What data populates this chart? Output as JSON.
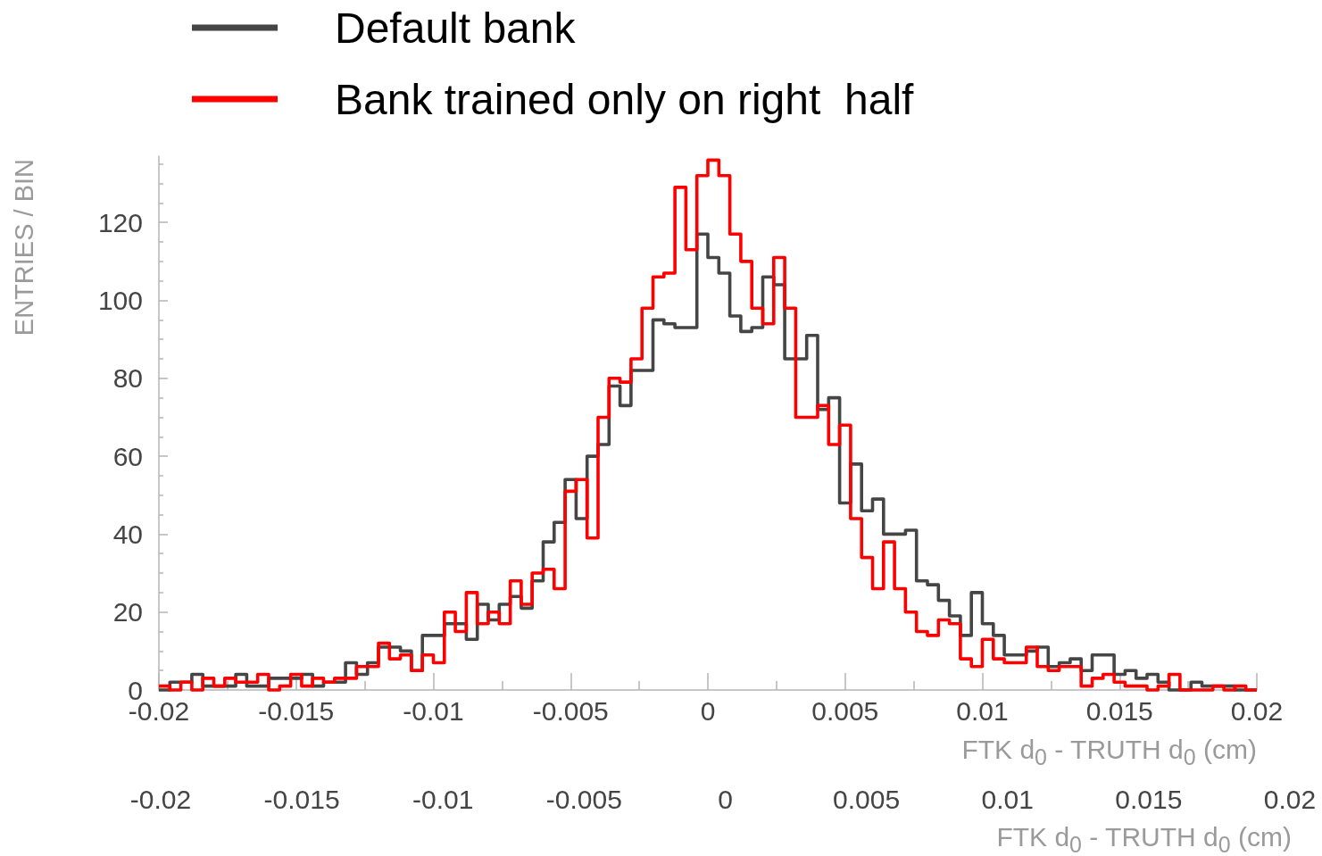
{
  "chart_data": {
    "type": "histogram",
    "xlabel": "FTK d$_{0}$ - TRUTH d$_{0}$ (cm)",
    "x2label": "FTK d$_{0}$ - TRUTH d$_{0}$ (cm)",
    "ylabel": "ENTRIES / BIN",
    "legend": "top left",
    "bins": [
      -0.02,
      -0.0196,
      -0.0192,
      -0.0188,
      -0.0184,
      -0.018,
      -0.0176,
      -0.0172,
      -0.0168,
      -0.0164,
      -0.016,
      -0.0156,
      -0.0152,
      -0.0148,
      -0.0144,
      -0.014,
      -0.0136,
      -0.0132,
      -0.0128,
      -0.0124,
      -0.012,
      -0.0116,
      -0.0112,
      -0.0108,
      -0.0104,
      -0.01,
      -0.0096,
      -0.0092,
      -0.0088,
      -0.0084,
      -0.008,
      -0.0076,
      -0.0072,
      -0.0068,
      -0.0064,
      -0.006,
      -0.0056,
      -0.0052,
      -0.0048,
      -0.0044,
      -0.004,
      -0.0036,
      -0.0032,
      -0.0028,
      -0.0024,
      -0.002,
      -0.0016,
      -0.0012,
      -0.0008,
      -0.0004,
      0,
      0.0004,
      0.0008,
      0.0012,
      0.0016,
      0.002,
      0.0024,
      0.0028,
      0.0032,
      0.0036,
      0.004,
      0.0044,
      0.0048,
      0.0052,
      0.0056,
      0.006,
      0.0064,
      0.0068,
      0.0072,
      0.0076,
      0.008,
      0.0084,
      0.0088,
      0.0092,
      0.0096,
      0.01,
      0.0104,
      0.0108,
      0.0112,
      0.0116,
      0.012,
      0.0124,
      0.0128,
      0.0132,
      0.0136,
      0.014,
      0.0144,
      0.0148,
      0.0152,
      0.0156,
      0.016,
      0.0164,
      0.0168,
      0.0172,
      0.0176,
      0.018,
      0.0184,
      0.0188,
      0.0192,
      0.0196,
      0.02
    ],
    "series": [
      {
        "name": "Default bank",
        "color": "#454545",
        "values": [
          0,
          2,
          2,
          4,
          1,
          1,
          1,
          4,
          1,
          1,
          3,
          3,
          3,
          4,
          1,
          2,
          2,
          7,
          4,
          7,
          11,
          11,
          10,
          5,
          14,
          14,
          17,
          17,
          13,
          22,
          18,
          22,
          24,
          21,
          28,
          38,
          43,
          54,
          44,
          60,
          63,
          78,
          73,
          82,
          82,
          95,
          94,
          93,
          93,
          117,
          111,
          107,
          96,
          92,
          93,
          106,
          104,
          85,
          85,
          91,
          72,
          75,
          48,
          58,
          46,
          49,
          40,
          40,
          41,
          28,
          27,
          23,
          19,
          14,
          25,
          17,
          14,
          9,
          9,
          10,
          11,
          6,
          7,
          8,
          5,
          9,
          9,
          4,
          5,
          3,
          4,
          2,
          0,
          0,
          2,
          1,
          1,
          1,
          0,
          0
        ]
      },
      {
        "name": "Bank trained only on right  half",
        "color": "#ff0000",
        "values": [
          1,
          0,
          2,
          0,
          3,
          1,
          3,
          2,
          2,
          4,
          0,
          1,
          4,
          1,
          3,
          2,
          3,
          3,
          6,
          6,
          12,
          8,
          9,
          5,
          9,
          7,
          20,
          15,
          25,
          17,
          20,
          17,
          28,
          22,
          30,
          31,
          26,
          51,
          54,
          39,
          70,
          80,
          79,
          85,
          98,
          106,
          107,
          129,
          113,
          132,
          136,
          132,
          117,
          110,
          98,
          94,
          111,
          98,
          70,
          70,
          73,
          63,
          68,
          44,
          34,
          26,
          38,
          26,
          20,
          15,
          14,
          18,
          17,
          8,
          6,
          13,
          8,
          7,
          7,
          11,
          6,
          5,
          6,
          6,
          1,
          3,
          4,
          2,
          1,
          1,
          0,
          1,
          4,
          0,
          0,
          0,
          1,
          0,
          1,
          0
        ]
      }
    ],
    "xlim": [
      -0.02,
      0.02
    ],
    "xticks": [
      -0.02,
      {
        "value": -0.0175,
        "label": null
      },
      -0.015,
      {
        "value": -0.0125,
        "label": null
      },
      -0.01,
      {
        "value": -0.0075,
        "label": null
      },
      -0.005,
      {
        "value": -0.0025,
        "label": null
      },
      0,
      {
        "value": 0.0025,
        "label": null
      },
      0.005,
      {
        "value": 0.0075,
        "label": null
      },
      0.01,
      {
        "value": 0.0125,
        "label": null
      },
      0.015,
      {
        "value": 0.0175,
        "label": null
      },
      0.02
    ],
    "x2lim": [
      -0.02,
      0.02
    ],
    "x2ticks": [
      -0.02,
      -0.015,
      -0.01,
      -0.005,
      0,
      0.005,
      0.01,
      0.015,
      0.02
    ],
    "ylim": [
      0,
      137
    ],
    "yticks": [
      0,
      {
        "value": 5,
        "label": null
      },
      {
        "value": 10,
        "label": null
      },
      {
        "value": 15,
        "label": null
      },
      20,
      {
        "value": 25,
        "label": null
      },
      {
        "value": 30,
        "label": null
      },
      {
        "value": 35,
        "label": null
      },
      40,
      {
        "value": 45,
        "label": null
      },
      {
        "value": 50,
        "label": null
      },
      {
        "value": 55,
        "label": null
      },
      60,
      {
        "value": 65,
        "label": null
      },
      {
        "value": 70,
        "label": null
      },
      {
        "value": 75,
        "label": null
      },
      80,
      {
        "value": 85,
        "label": null
      },
      {
        "value": 90,
        "label": null
      },
      {
        "value": 95,
        "label": null
      },
      100,
      {
        "value": 105,
        "label": null
      },
      {
        "value": 110,
        "label": null
      },
      {
        "value": 115,
        "label": null
      },
      120,
      {
        "value": 125,
        "label": null
      },
      {
        "value": 130,
        "label": null
      },
      {
        "value": 135,
        "label": null
      }
    ]
  }
}
